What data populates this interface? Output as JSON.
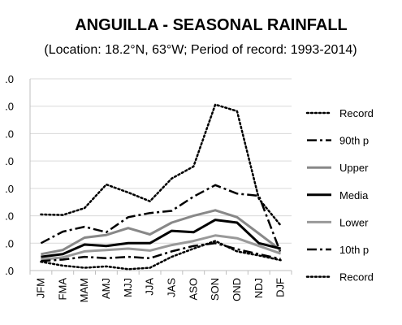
{
  "chart_data": {
    "type": "line",
    "title": "ANGUILLA - SEASONAL RAINFALL",
    "subtitle": "(Location: 18.2°N, 63°W; Period of record: 1993-2014)",
    "categories": [
      "JFM",
      "FMA",
      "MAM",
      "AMJ",
      "MJJ",
      "JJA",
      "JAS",
      "ASO",
      "SON",
      "OND",
      "NDJ",
      "DJF"
    ],
    "y_tick_labels": [
      ".0",
      ".0",
      ".0",
      ".0",
      ".0",
      ".0",
      ".0",
      ".0"
    ],
    "ylim": [
      0,
      700
    ],
    "y_ticks": [
      0,
      100,
      200,
      300,
      400,
      500,
      600,
      700
    ],
    "grid": true,
    "legend_position": "right",
    "series": [
      {
        "name": "Record",
        "style": "dotted",
        "color": "#000000",
        "values": [
          205,
          203,
          228,
          314,
          285,
          253,
          336,
          380,
          606,
          582,
          262,
          165
        ]
      },
      {
        "name": "90th p",
        "style": "dash-dot",
        "color": "#000000",
        "values": [
          100,
          142,
          160,
          140,
          195,
          210,
          218,
          270,
          312,
          281,
          273,
          65
        ]
      },
      {
        "name": "Upper",
        "style": "solid-thick",
        "color": "#888888",
        "values": [
          60,
          75,
          120,
          130,
          155,
          132,
          175,
          200,
          220,
          195,
          135,
          75
        ]
      },
      {
        "name": "Media",
        "style": "solid-thick",
        "color": "#000000",
        "values": [
          50,
          60,
          95,
          90,
          100,
          100,
          145,
          140,
          185,
          175,
          100,
          80
        ]
      },
      {
        "name": "Lower",
        "style": "solid-thick",
        "color": "#999999",
        "values": [
          40,
          48,
          70,
          75,
          80,
          73,
          93,
          108,
          128,
          118,
          90,
          62
        ]
      },
      {
        "name": "10th p",
        "style": "dash-dot",
        "color": "#000000",
        "values": [
          35,
          40,
          50,
          45,
          50,
          45,
          70,
          90,
          100,
          78,
          60,
          42
        ]
      },
      {
        "name": "Record",
        "style": "dotted",
        "color": "#000000",
        "values": [
          32,
          18,
          10,
          15,
          5,
          10,
          50,
          80,
          108,
          70,
          55,
          38
        ]
      }
    ]
  }
}
